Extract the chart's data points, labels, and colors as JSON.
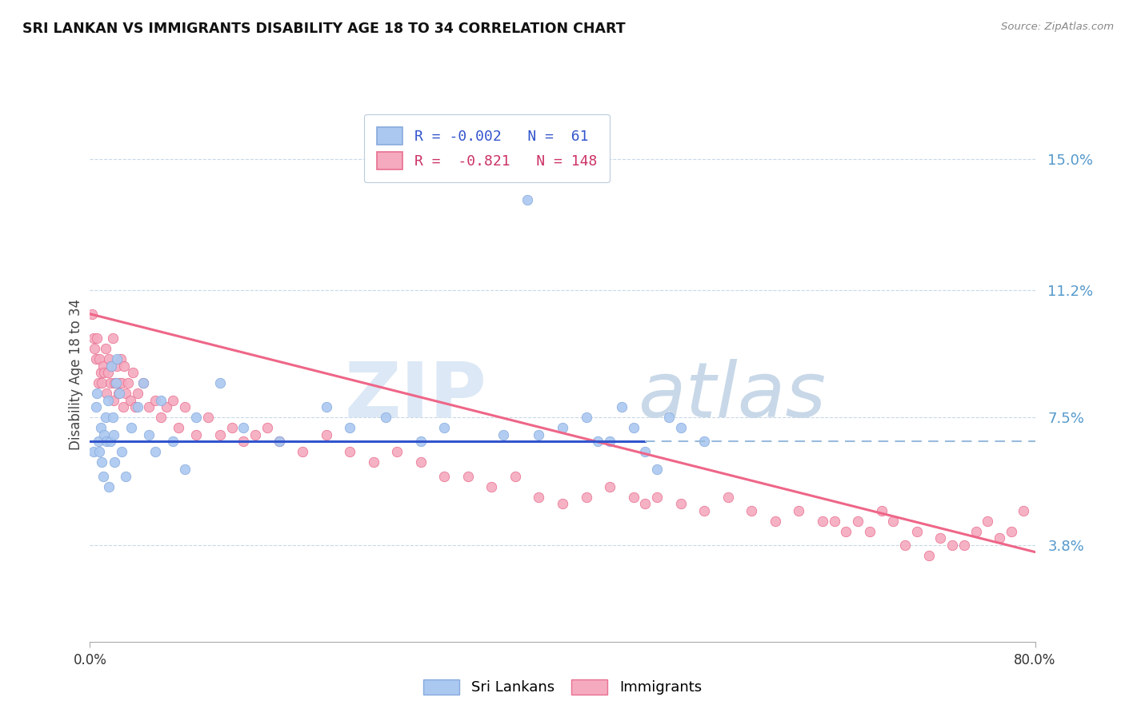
{
  "title": "SRI LANKAN VS IMMIGRANTS DISABILITY AGE 18 TO 34 CORRELATION CHART",
  "source": "Source: ZipAtlas.com",
  "ylabel": "Disability Age 18 to 34",
  "ytick_labels": [
    "3.8%",
    "7.5%",
    "11.2%",
    "15.0%"
  ],
  "ytick_values": [
    3.8,
    7.5,
    11.2,
    15.0
  ],
  "r_sri": -0.002,
  "n_sri": 61,
  "r_imm": -0.821,
  "n_imm": 148,
  "color_sri": "#aac8f0",
  "color_imm": "#f5aabf",
  "edge_sri": "#88aadd",
  "edge_imm": "#e87090",
  "line_sri_color": "#3355cc",
  "line_sri_dash_color": "#99bbdd",
  "line_imm_color": "#ee6688",
  "watermark_zip_color": "#dce8f5",
  "watermark_atlas_color": "#c8d8e8",
  "xmin": 0.0,
  "xmax": 80.0,
  "ymin": 1.0,
  "ymax": 16.5,
  "sri_line_y": 6.8,
  "sri_line_solid_xmax": 47.0,
  "imm_line_x0": 0.0,
  "imm_line_y0": 10.5,
  "imm_line_x1": 80.0,
  "imm_line_y1": 3.6,
  "sri_x": [
    0.3,
    0.5,
    0.6,
    0.7,
    0.8,
    0.9,
    1.0,
    1.1,
    1.2,
    1.3,
    1.4,
    1.5,
    1.6,
    1.7,
    1.8,
    1.9,
    2.0,
    2.1,
    2.2,
    2.3,
    2.5,
    2.7,
    3.0,
    3.5,
    4.0,
    4.5,
    5.0,
    5.5,
    6.0,
    7.0,
    8.0,
    9.0,
    11.0,
    13.0,
    16.0,
    20.0,
    22.0,
    25.0,
    28.0,
    30.0,
    35.0,
    38.0,
    40.0,
    42.0,
    44.0,
    45.0,
    46.0,
    47.0,
    48.0,
    50.0,
    52.0,
    37.0,
    43.0,
    49.0
  ],
  "sri_y": [
    6.5,
    7.8,
    8.2,
    6.8,
    6.5,
    7.2,
    6.2,
    5.8,
    7.0,
    7.5,
    6.8,
    8.0,
    5.5,
    6.8,
    9.0,
    7.5,
    7.0,
    6.2,
    8.5,
    9.2,
    8.2,
    6.5,
    5.8,
    7.2,
    7.8,
    8.5,
    7.0,
    6.5,
    8.0,
    6.8,
    6.0,
    7.5,
    8.5,
    7.2,
    6.8,
    7.8,
    7.2,
    7.5,
    6.8,
    7.2,
    7.0,
    7.0,
    7.2,
    7.5,
    6.8,
    7.8,
    7.2,
    6.5,
    6.0,
    7.2,
    6.8,
    13.8,
    6.8,
    7.5
  ],
  "imm_x": [
    0.2,
    0.3,
    0.4,
    0.5,
    0.6,
    0.7,
    0.8,
    0.9,
    1.0,
    1.1,
    1.2,
    1.3,
    1.4,
    1.5,
    1.6,
    1.7,
    1.8,
    1.9,
    2.0,
    2.1,
    2.2,
    2.3,
    2.4,
    2.5,
    2.6,
    2.7,
    2.8,
    2.9,
    3.0,
    3.2,
    3.4,
    3.6,
    3.8,
    4.0,
    4.5,
    5.0,
    5.5,
    6.0,
    6.5,
    7.0,
    7.5,
    8.0,
    9.0,
    10.0,
    11.0,
    12.0,
    13.0,
    14.0,
    15.0,
    16.0,
    18.0,
    20.0,
    22.0,
    24.0,
    26.0,
    28.0,
    30.0,
    32.0,
    34.0,
    36.0,
    38.0,
    40.0,
    42.0,
    44.0,
    46.0,
    47.0,
    48.0,
    50.0,
    52.0,
    54.0,
    56.0,
    58.0,
    60.0,
    62.0,
    64.0,
    65.0,
    66.0,
    67.0,
    68.0,
    70.0,
    72.0,
    74.0,
    75.0,
    76.0,
    77.0,
    78.0,
    79.0,
    63.0,
    69.0,
    71.0,
    73.0
  ],
  "imm_y": [
    10.5,
    9.8,
    9.5,
    9.2,
    9.8,
    8.5,
    9.2,
    8.8,
    8.5,
    9.0,
    8.8,
    9.5,
    8.2,
    8.8,
    9.2,
    8.5,
    9.0,
    9.8,
    8.0,
    8.5,
    8.5,
    9.0,
    8.2,
    8.5,
    9.2,
    8.5,
    7.8,
    9.0,
    8.2,
    8.5,
    8.0,
    8.8,
    7.8,
    8.2,
    8.5,
    7.8,
    8.0,
    7.5,
    7.8,
    8.0,
    7.2,
    7.8,
    7.0,
    7.5,
    7.0,
    7.2,
    6.8,
    7.0,
    7.2,
    6.8,
    6.5,
    7.0,
    6.5,
    6.2,
    6.5,
    6.2,
    5.8,
    5.8,
    5.5,
    5.8,
    5.2,
    5.0,
    5.2,
    5.5,
    5.2,
    5.0,
    5.2,
    5.0,
    4.8,
    5.2,
    4.8,
    4.5,
    4.8,
    4.5,
    4.2,
    4.5,
    4.2,
    4.8,
    4.5,
    4.2,
    4.0,
    3.8,
    4.2,
    4.5,
    4.0,
    4.2,
    4.8,
    4.5,
    3.8,
    3.5,
    3.8
  ]
}
